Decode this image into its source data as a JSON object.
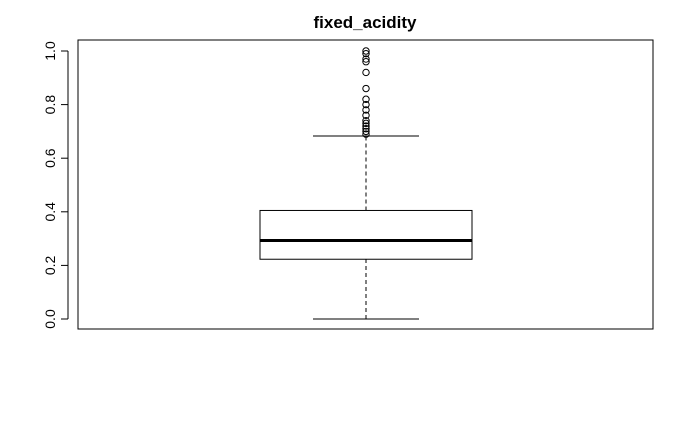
{
  "chart_data": {
    "type": "boxplot",
    "title": "fixed_acidity",
    "xlabel": "",
    "ylabel": "",
    "ylim": [
      0.0,
      1.0
    ],
    "y_ticks": [
      {
        "value": 0.0,
        "label": "0.0"
      },
      {
        "value": 0.2,
        "label": "0.2"
      },
      {
        "value": 0.4,
        "label": "0.4"
      },
      {
        "value": 0.6,
        "label": "0.6"
      },
      {
        "value": 0.8,
        "label": "0.8"
      },
      {
        "value": 1.0,
        "label": "1.0"
      }
    ],
    "grid": false,
    "box": {
      "whisker_low": 0.0,
      "q1": 0.223,
      "median": 0.293,
      "q3": 0.405,
      "whisker_high": 0.683
    },
    "outliers": [
      0.69,
      0.7,
      0.71,
      0.72,
      0.73,
      0.74,
      0.76,
      0.78,
      0.8,
      0.82,
      0.86,
      0.92,
      0.96,
      0.97,
      0.99,
      1.0
    ],
    "colors": {
      "stroke": "#000000",
      "background": "#ffffff"
    }
  }
}
